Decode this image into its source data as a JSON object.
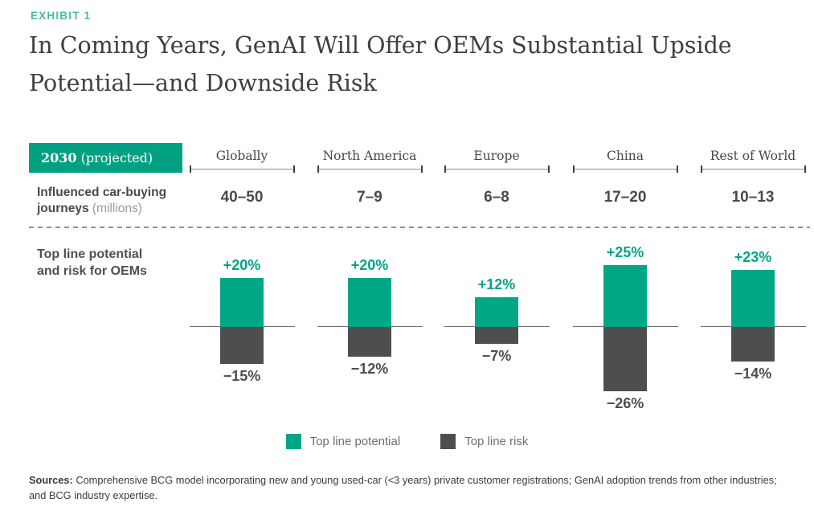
{
  "exhibit_label": "EXHIBIT 1",
  "title": {
    "line1": "In Coming Years, GenAI Will Offer OEMs Substantial Upside",
    "line2": "Potential—and Downside Risk"
  },
  "header": {
    "badge_year": "2030",
    "badge_note": " (projected)",
    "row_label": "Influenced car-buying journeys",
    "row_label_note": " (millions)"
  },
  "chart_label": {
    "line1": "Top line potential",
    "line2": "and risk for OEMs"
  },
  "legend": {
    "potential": {
      "label": "Top line potential",
      "color": "#00a685"
    },
    "risk": {
      "label": "Top line risk",
      "color": "#4e4e4e"
    }
  },
  "footer": {
    "sources_label": "Sources:",
    "sources_text": " Comprehensive BCG model incorporating new and young used-car (<3 years) private customer registrations; GenAI adoption trends from other industries; and BCG industry expertise."
  },
  "colors": {
    "accent_green": "#00a685",
    "exhibit_label_green": "#46bda1",
    "badge_background": "#00a183",
    "dark_gray": "#4e4e4e"
  },
  "chart_data": {
    "type": "bar",
    "title": "Top line potential and risk for OEMs, 2030 (projected)",
    "categories": [
      "Globally",
      "North America",
      "Europe",
      "China",
      "Rest of World"
    ],
    "influenced_journeys_millions": [
      "40–50",
      "7–9",
      "6–8",
      "17–20",
      "10–13"
    ],
    "series": [
      {
        "name": "Top line potential",
        "values": [
          20,
          20,
          12,
          25,
          23
        ],
        "color": "#00a685"
      },
      {
        "name": "Top line risk",
        "values": [
          -15,
          -12,
          -7,
          -26,
          -14
        ],
        "color": "#4e4e4e"
      }
    ],
    "unit": "%",
    "value_format": "signed percent",
    "baseline": 0,
    "ylim": [
      -26,
      25
    ],
    "grid": false,
    "legend_position": "bottom"
  }
}
